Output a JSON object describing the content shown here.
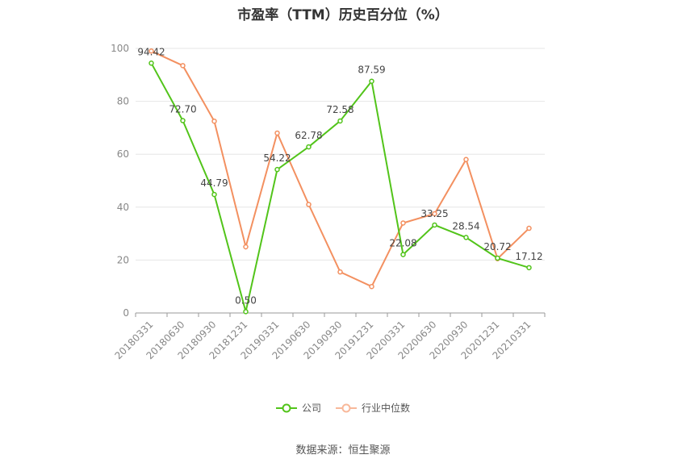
{
  "chart_data": {
    "type": "line",
    "title": "市盈率（TTM）历史百分位（%）",
    "categories": [
      "20180331",
      "20180630",
      "20180930",
      "20181231",
      "20190331",
      "20190630",
      "20190930",
      "20191231",
      "20200331",
      "20200630",
      "20200930",
      "20201231",
      "20210331"
    ],
    "series": [
      {
        "name": "公司",
        "color": "#52c41a",
        "values": [
          94.42,
          72.7,
          44.79,
          0.5,
          54.22,
          62.78,
          72.58,
          87.59,
          22.08,
          33.25,
          28.54,
          20.72,
          17.12
        ],
        "labels": [
          "94.42",
          "72.70",
          "44.79",
          "0.50",
          "54.22",
          "62.78",
          "72.58",
          "87.59",
          "22.08",
          "33.25",
          "28.54",
          "20.72",
          "17.12"
        ]
      },
      {
        "name": "行业中位数",
        "color": "#f39060",
        "values": [
          99.0,
          93.5,
          72.5,
          25.0,
          68.0,
          41.0,
          15.5,
          10.0,
          34.0,
          37.5,
          58.0,
          20.5,
          32.0
        ]
      }
    ],
    "yticks": [
      0,
      20,
      40,
      60,
      80,
      100
    ],
    "ylim": [
      0,
      100
    ],
    "xlabel": "",
    "ylabel": "",
    "grid": true,
    "legend": "bottom-center"
  },
  "source": "数据来源：恒生聚源"
}
